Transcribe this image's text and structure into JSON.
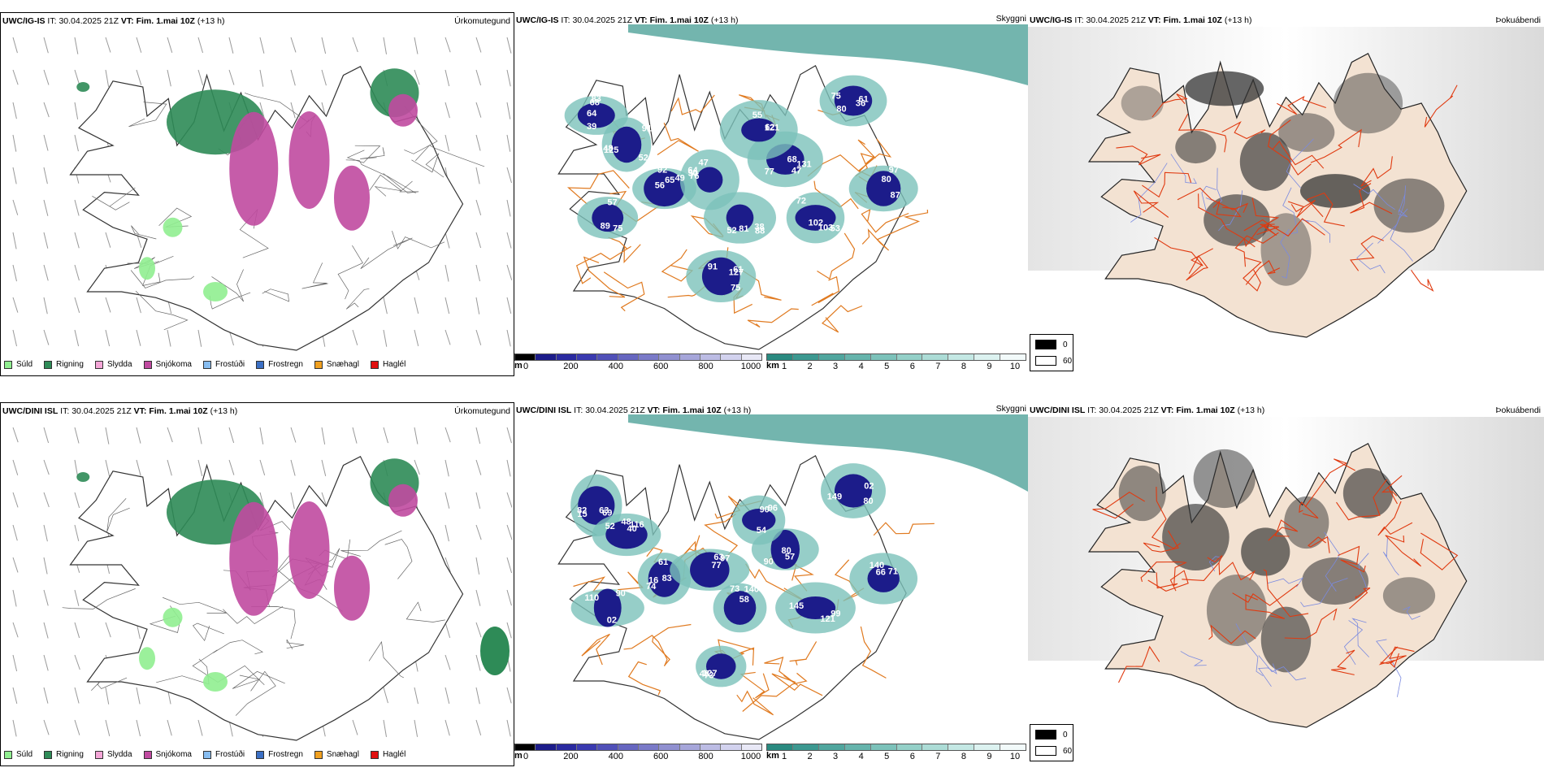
{
  "rows": [
    {
      "model": "UWC/IG-IS",
      "it_label": "IT:",
      "it_value": "30.04.2025 21Z",
      "vt_label": "VT:",
      "vt_value": "Fim. 1.mai 10Z",
      "lead": "(+13 h)",
      "values_visibility": [
        "64",
        "48",
        "65",
        "64",
        "52",
        "61",
        "47",
        "53",
        "61",
        "87",
        "89",
        "55",
        "68",
        "91",
        "56",
        "76",
        "88",
        "75",
        "77",
        "103",
        "80",
        "97",
        "57",
        "62",
        "39",
        "52",
        "49",
        "47",
        "38",
        "127",
        "131",
        "72",
        "75",
        "80",
        "75",
        "121",
        "83",
        "125",
        "92",
        "90",
        "81",
        "91",
        "68",
        "102",
        "36"
      ]
    },
    {
      "model": "UWC/DINI ISL",
      "it_label": "IT:",
      "it_value": "30.04.2025 21Z",
      "vt_label": "VT:",
      "vt_value": "Fim. 1.mai 10Z",
      "lead": "(+13 h)",
      "values_visibility": [
        "63",
        "52",
        "74",
        "63",
        "58",
        "73",
        "80",
        "99",
        "02",
        "66",
        "02",
        "54",
        "69",
        "116",
        "83",
        "97",
        "140",
        "127",
        "90",
        "145",
        "80",
        "71",
        "90",
        "96",
        "82",
        "48",
        "61",
        "77",
        "73",
        "48",
        "57",
        "121",
        "149",
        "140",
        "110",
        "90",
        "15",
        "40",
        "16"
      ]
    }
  ],
  "panel_titles": {
    "precip": "Úrkomutegund",
    "cloud_base": "Skyggni",
    "cloud_cover": "Þokuábendi"
  },
  "precip_legend": [
    {
      "label": "Súld",
      "color": "#90ee90"
    },
    {
      "label": "Rigning",
      "color": "#2e8b57"
    },
    {
      "label": "Slydda",
      "color": "#f4a6d7"
    },
    {
      "label": "Snjókoma",
      "color": "#c04aa0"
    },
    {
      "label": "Frostúði",
      "color": "#87bdf0"
    },
    {
      "label": "Frostregn",
      "color": "#3b6fc4"
    },
    {
      "label": "Snæhagl",
      "color": "#f0a020"
    },
    {
      "label": "Haglél",
      "color": "#e01010"
    }
  ],
  "height_scale": {
    "unit": "m",
    "ticks": [
      "0",
      "200",
      "400",
      "600",
      "800",
      "1000"
    ],
    "colors": [
      "#000000",
      "#1c1c8a",
      "#2a2aa0",
      "#3a3ab0",
      "#5050b8",
      "#6666c0",
      "#7a7ac8",
      "#9090d0",
      "#a6a6da",
      "#bcbce4",
      "#d2d2ee",
      "#e8e8f6"
    ]
  },
  "visibility_scale": {
    "unit": "km",
    "ticks": [
      "1",
      "2",
      "3",
      "4",
      "5",
      "6",
      "7",
      "8",
      "9",
      "10"
    ],
    "colors": [
      "#2a8a80",
      "#3c9890",
      "#50a69e",
      "#66b4ac",
      "#7cc2ba",
      "#94d0c8",
      "#acdcd6",
      "#c4e8e4",
      "#dcf2f0",
      "#f2fafa"
    ]
  },
  "fog_scale": {
    "max_label": "0",
    "min_label": "60",
    "max_color": "#000000",
    "min_color": "#ffffff"
  }
}
